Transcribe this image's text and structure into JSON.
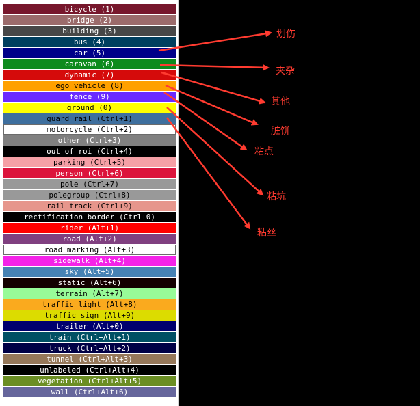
{
  "labels_list": [
    {
      "label": "bicycle (1)",
      "color": "#77172c",
      "text_color": "#ffffff"
    },
    {
      "label": "bridge (2)",
      "color": "#9b6b6b",
      "text_color": "#ffffff"
    },
    {
      "label": "building (3)",
      "color": "#474747",
      "text_color": "#ffffff"
    },
    {
      "label": "bus (4)",
      "color": "#003f5f",
      "text_color": "#ffffff"
    },
    {
      "label": "car (5)",
      "color": "#000089",
      "text_color": "#ffffff"
    },
    {
      "label": "caravan (6)",
      "color": "#0d8a1d",
      "text_color": "#ffffff"
    },
    {
      "label": "dynamic (7)",
      "color": "#d50b0b",
      "text_color": "#ffffff"
    },
    {
      "label": "ego vehicle (8)",
      "color": "#ffa000",
      "text_color": "#000000"
    },
    {
      "label": "fence (9)",
      "color": "#6b2bff",
      "text_color": "#ffffff"
    },
    {
      "label": "ground (0)",
      "color": "#ffff00",
      "text_color": "#000000"
    },
    {
      "label": "guard rail (Ctrl+1)",
      "color": "#3e6f9e",
      "text_color": "#000000"
    },
    {
      "label": "motorcycle (Ctrl+2)",
      "color": "#ffffff",
      "text_color": "#000000"
    },
    {
      "label": "other (Ctrl+3)",
      "color": "#808080",
      "text_color": "#ffffff"
    },
    {
      "label": "out of roi (Ctrl+4)",
      "color": "#000000",
      "text_color": "#ffffff"
    },
    {
      "label": "parking (Ctrl+5)",
      "color": "#f5a0a6",
      "text_color": "#000000"
    },
    {
      "label": "person (Ctrl+6)",
      "color": "#dc143c",
      "text_color": "#ffffff"
    },
    {
      "label": "pole (Ctrl+7)",
      "color": "#999999",
      "text_color": "#000000"
    },
    {
      "label": "polegroup (Ctrl+8)",
      "color": "#999999",
      "text_color": "#000000"
    },
    {
      "label": "rail track (Ctrl+9)",
      "color": "#e6968c",
      "text_color": "#000000"
    },
    {
      "label": "rectification border (Ctrl+0)",
      "color": "#000000",
      "text_color": "#ffffff"
    },
    {
      "label": "rider (Alt+1)",
      "color": "#ff0000",
      "text_color": "#ffffff"
    },
    {
      "label": "road (Alt+2)",
      "color": "#804080",
      "text_color": "#ffffff"
    },
    {
      "label": "road marking (Alt+3)",
      "color": "#ffffff",
      "text_color": "#000000"
    },
    {
      "label": "sidewalk (Alt+4)",
      "color": "#f423e8",
      "text_color": "#ffffff"
    },
    {
      "label": "sky (Alt+5)",
      "color": "#4682b4",
      "text_color": "#ffffff"
    },
    {
      "label": "static (Alt+6)",
      "color": "#140000",
      "text_color": "#ffffff"
    },
    {
      "label": "terrain (Alt+7)",
      "color": "#98fb98",
      "text_color": "#000000"
    },
    {
      "label": "traffic light (Alt+8)",
      "color": "#faaa1e",
      "text_color": "#000000"
    },
    {
      "label": "traffic sign (Alt+9)",
      "color": "#dcdc00",
      "text_color": "#000000"
    },
    {
      "label": "trailer (Alt+0)",
      "color": "#00006e",
      "text_color": "#ffffff"
    },
    {
      "label": "train (Ctrl+Alt+1)",
      "color": "#005064",
      "text_color": "#ffffff"
    },
    {
      "label": "truck (Ctrl+Alt+2)",
      "color": "#000046",
      "text_color": "#ffffff"
    },
    {
      "label": "tunnel (Ctrl+Alt+3)",
      "color": "#96785a",
      "text_color": "#ffffff"
    },
    {
      "label": "unlabeled (Ctrl+Alt+4)",
      "color": "#000000",
      "text_color": "#ffffff"
    },
    {
      "label": "vegetation (Ctrl+Alt+5)",
      "color": "#6b8e23",
      "text_color": "#ffffff"
    },
    {
      "label": "wall (Ctrl+Alt+6)",
      "color": "#66669c",
      "text_color": "#ffffff"
    }
  ],
  "annotations": [
    {
      "label": "划伤",
      "color": "#ff3b30",
      "from_item": "car (5)"
    },
    {
      "label": "夹杂",
      "color": "#ff3b30",
      "from_item": "caravan (6)"
    },
    {
      "label": "其他",
      "color": "#ff3b30",
      "from_item": "dynamic (7)"
    },
    {
      "label": "脏饼",
      "color": "#ff3b30",
      "from_item": "ego vehicle (8)"
    },
    {
      "label": "粘点",
      "color": "#ff3b30",
      "from_item": "fence (9)"
    },
    {
      "label": "粘坑",
      "color": "#ff3b30",
      "from_item": "ground (0)"
    },
    {
      "label": "粘丝",
      "color": "#ff3b30",
      "from_item": "guard rail (Ctrl+1)"
    }
  ]
}
